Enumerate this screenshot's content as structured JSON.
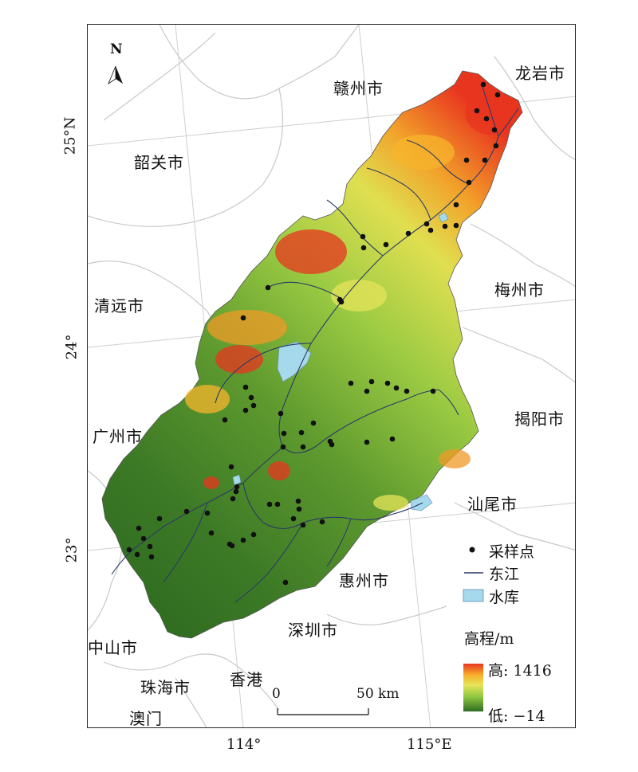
{
  "cities": [
    {
      "id": "ganzhou",
      "name": "赣州市"
    },
    {
      "id": "longyan",
      "name": "龙岩市"
    },
    {
      "id": "shaoguan",
      "name": "韶关市"
    },
    {
      "id": "meizhou",
      "name": "梅州市"
    },
    {
      "id": "qingyuan",
      "name": "清远市"
    },
    {
      "id": "jieyang",
      "name": "揭阳市"
    },
    {
      "id": "guangzhou",
      "name": "广州市"
    },
    {
      "id": "shanwei",
      "name": "汕尾市"
    },
    {
      "id": "huizhou",
      "name": "惠州市"
    },
    {
      "id": "shenzhen",
      "name": "深圳市"
    },
    {
      "id": "zhongshan",
      "name": "中山市"
    },
    {
      "id": "zhuhai",
      "name": "珠海市"
    },
    {
      "id": "hongkong",
      "name": "香港"
    },
    {
      "id": "macau",
      "name": "澳门"
    }
  ],
  "graticule": {
    "lat_labels": [
      "25°N",
      "24°",
      "23°"
    ],
    "lon_labels": [
      "114°",
      "115°E"
    ]
  },
  "north_arrow": {
    "label": "N"
  },
  "scale_bar": {
    "start": "0",
    "end": "50 km"
  },
  "legend": {
    "sample_points": "采样点",
    "river": "东江",
    "reservoir": "水库",
    "elevation_title": "高程/m",
    "elevation_high": "高: 1416",
    "elevation_low": "低: −14"
  },
  "colors": {
    "elev_high": "#e8351f",
    "elev_mid_high": "#f7b52c",
    "elev_mid": "#e6e45a",
    "elev_mid_low": "#8dc63f",
    "elev_low": "#2f6b22",
    "river": "#2b3a67",
    "reservoir": "#a6d9ec",
    "boundary": "#c8c8c8"
  }
}
